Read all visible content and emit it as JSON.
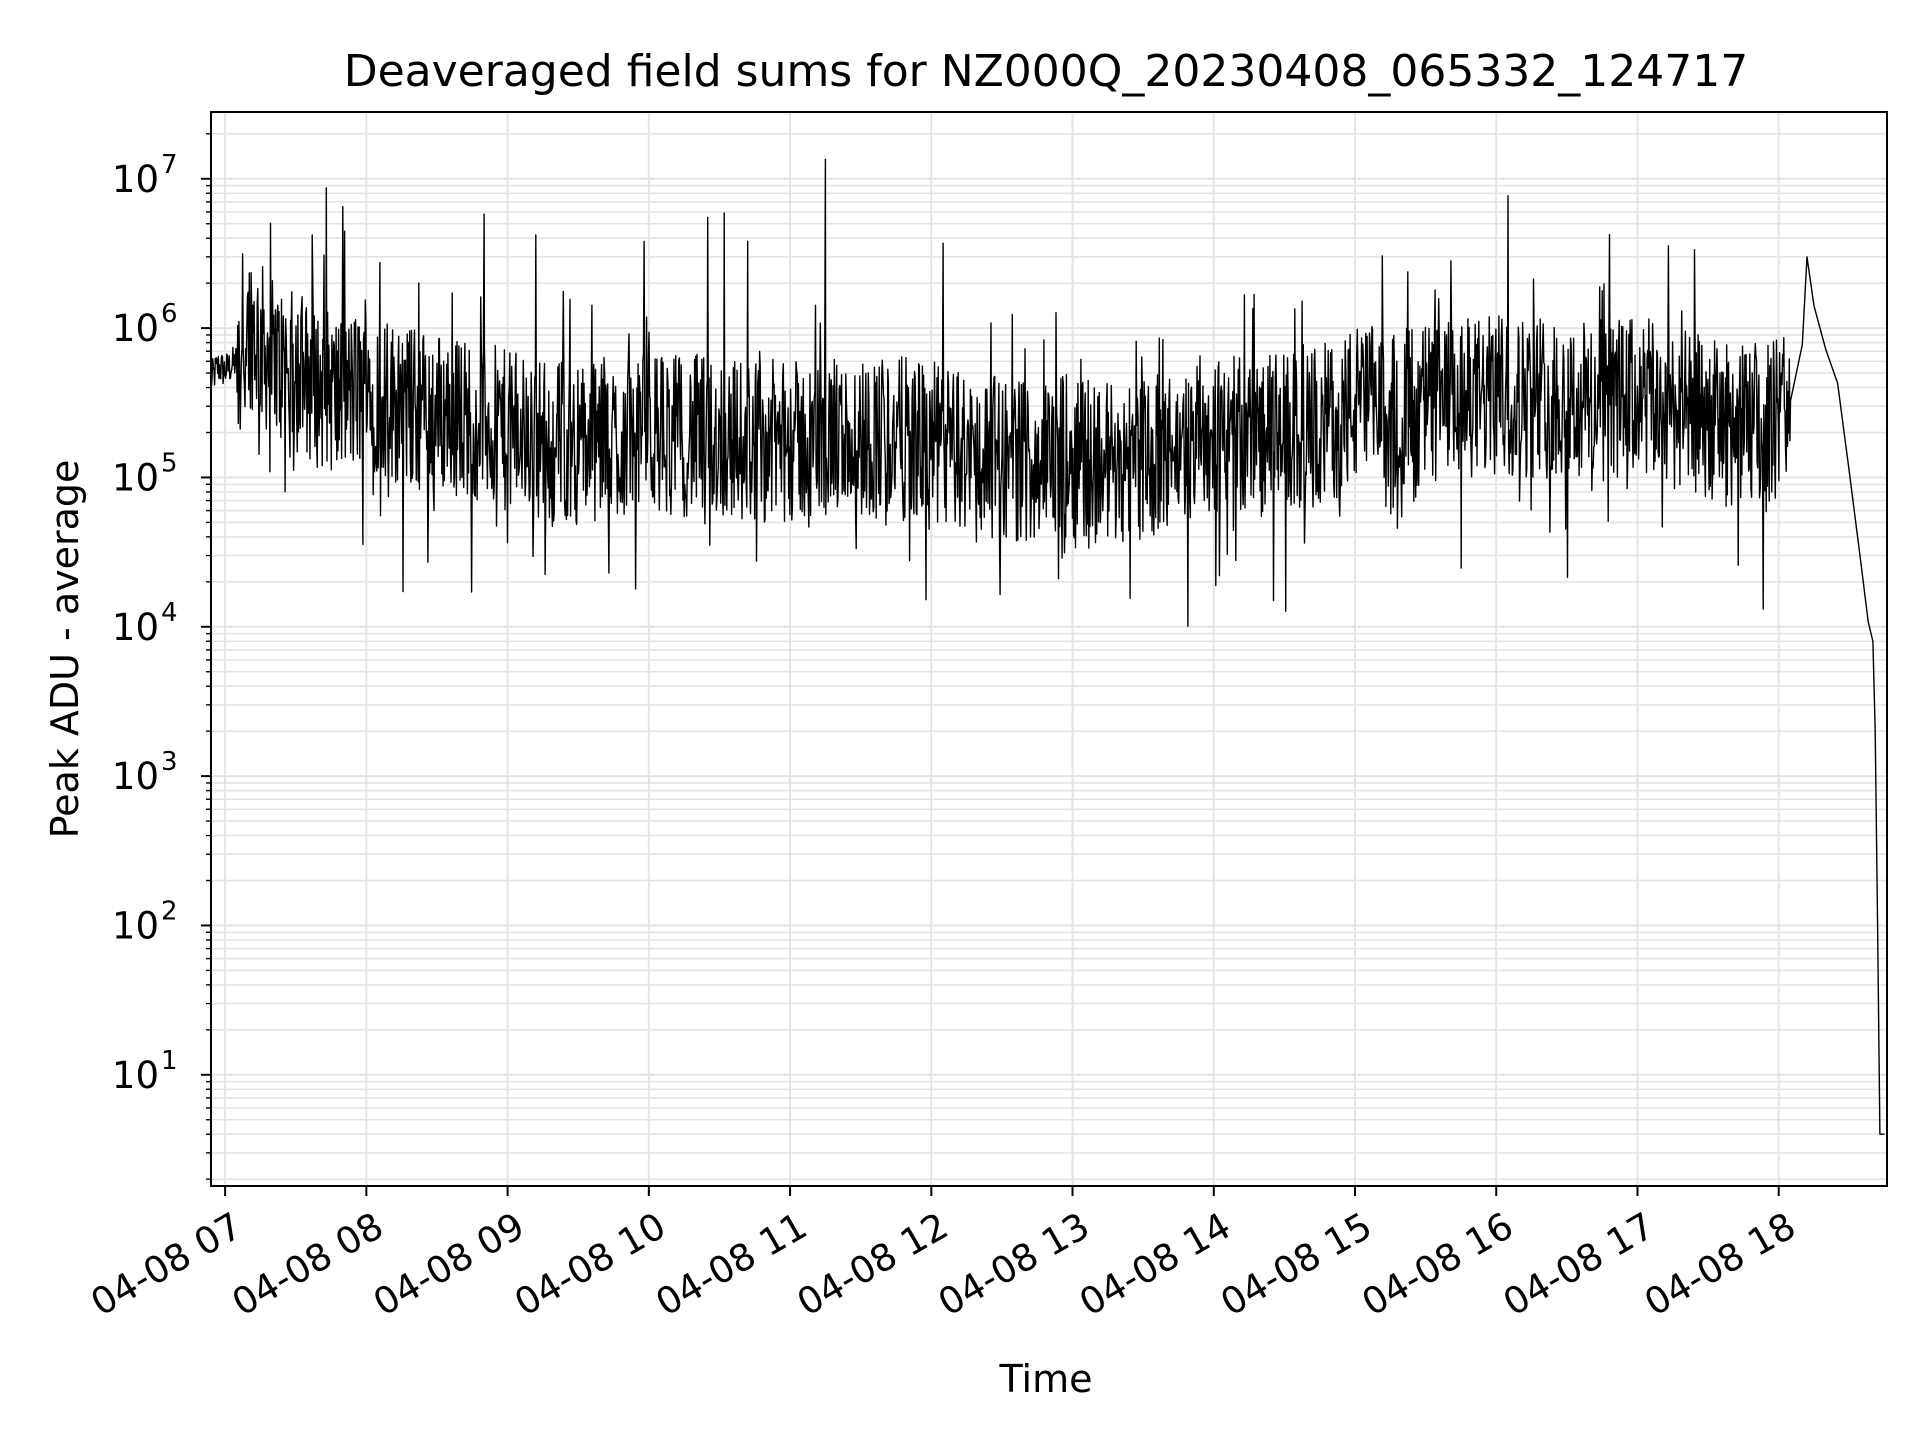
{
  "chart_data": {
    "type": "line",
    "title": "Deaveraged field sums for NZ000Q_20230408_065332_124717",
    "xlabel": "Time",
    "ylabel": "Peak ADU - average",
    "yscale": "log",
    "xlim": [
      "2023-04-08 06:54",
      "2023-04-08 18:46"
    ],
    "ylim": [
      1.8,
      28000000
    ],
    "x_ticks": [
      "04-08 07",
      "04-08 08",
      "04-08 09",
      "04-08 10",
      "04-08 11",
      "04-08 12",
      "04-08 13",
      "04-08 14",
      "04-08 15",
      "04-08 16",
      "04-08 17",
      "04-08 18"
    ],
    "y_ticks": [
      {
        "base": "10",
        "exp": "1"
      },
      {
        "base": "10",
        "exp": "2"
      },
      {
        "base": "10",
        "exp": "3"
      },
      {
        "base": "10",
        "exp": "4"
      },
      {
        "base": "10",
        "exp": "5"
      },
      {
        "base": "10",
        "exp": "6"
      },
      {
        "base": "10",
        "exp": "7"
      }
    ],
    "grid": true,
    "line_color": "#000000",
    "series": [
      {
        "values": [
          [
            "2023-04-08 06:54",
            450000
          ],
          [
            "2023-04-08 06:57",
            550000
          ],
          [
            "2023-04-08 07:00",
            520000
          ],
          [
            "2023-04-08 07:05",
            600000
          ],
          [
            "2023-04-08 07:10",
            1100000
          ],
          [
            "2023-04-08 07:15",
            800000
          ],
          [
            "2023-04-08 07:20",
            600000
          ],
          [
            "2023-04-08 07:30",
            500000
          ],
          [
            "2023-04-08 07:40",
            400000
          ],
          [
            "2023-04-08 07:50",
            350000
          ],
          [
            "2023-04-08 08:00",
            400000
          ],
          [
            "2023-04-08 08:15",
            300000
          ],
          [
            "2023-04-08 08:30",
            280000
          ],
          [
            "2023-04-08 08:45",
            250000
          ],
          [
            "2023-04-08 09:00",
            200000
          ],
          [
            "2023-04-08 09:20",
            180000
          ],
          [
            "2023-04-08 09:40",
            170000
          ],
          [
            "2023-04-08 10:00",
            200000
          ],
          [
            "2023-04-08 10:20",
            190000
          ],
          [
            "2023-04-08 10:40",
            180000
          ],
          [
            "2023-04-08 11:00",
            170000
          ],
          [
            "2023-04-08 11:20",
            180000
          ],
          [
            "2023-04-08 11:40",
            190000
          ],
          [
            "2023-04-08 12:00",
            170000
          ],
          [
            "2023-04-08 12:20",
            140000
          ],
          [
            "2023-04-08 12:40",
            130000
          ],
          [
            "2023-04-08 13:00",
            140000
          ],
          [
            "2023-04-08 13:20",
            130000
          ],
          [
            "2023-04-08 13:40",
            140000
          ],
          [
            "2023-04-08 14:00",
            200000
          ],
          [
            "2023-04-08 14:20",
            190000
          ],
          [
            "2023-04-08 14:40",
            200000
          ],
          [
            "2023-04-08 15:00",
            300000
          ],
          [
            "2023-04-08 15:20",
            300000
          ],
          [
            "2023-04-08 15:40",
            320000
          ],
          [
            "2023-04-08 16:00",
            350000
          ],
          [
            "2023-04-08 16:20",
            350000
          ],
          [
            "2023-04-08 16:40",
            330000
          ],
          [
            "2023-04-08 17:00",
            340000
          ],
          [
            "2023-04-08 17:20",
            280000
          ],
          [
            "2023-04-08 17:40",
            220000
          ],
          [
            "2023-04-08 18:00",
            250000
          ],
          [
            "2023-04-08 18:10",
            800000
          ],
          [
            "2023-04-08 18:15",
            1300000
          ],
          [
            "2023-04-08 18:20",
            700000
          ],
          [
            "2023-04-08 18:25",
            400000
          ],
          [
            "2023-04-08 18:30",
            100000
          ],
          [
            "2023-04-08 18:35",
            25000
          ],
          [
            "2023-04-08 18:38",
            12000
          ],
          [
            "2023-04-08 18:40",
            8000
          ],
          [
            "2023-04-08 18:41",
            2000
          ],
          [
            "2023-04-08 18:42",
            100
          ],
          [
            "2023-04-08 18:43",
            4
          ],
          [
            "2023-04-08 18:45",
            4
          ]
        ]
      }
    ],
    "spikes": [
      [
        "2023-04-08 07:37",
        4200000
      ],
      [
        "2023-04-08 07:43",
        8700000
      ],
      [
        "2023-04-08 07:50",
        6500000
      ],
      [
        "2023-04-08 08:50",
        5800000
      ],
      [
        "2023-04-08 09:12",
        4200000
      ],
      [
        "2023-04-08 09:58",
        3800000
      ],
      [
        "2023-04-08 10:25",
        5500000
      ],
      [
        "2023-04-08 10:32",
        5900000
      ],
      [
        "2023-04-08 10:42",
        3800000
      ],
      [
        "2023-04-08 11:15",
        13500000
      ],
      [
        "2023-04-08 12:05",
        3700000
      ],
      [
        "2023-04-08 16:05",
        7700000
      ],
      [
        "2023-04-08 18:12",
        3000000
      ]
    ]
  }
}
